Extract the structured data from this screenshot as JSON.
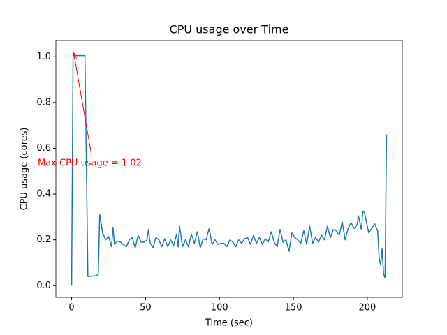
{
  "chart_data": {
    "type": "line",
    "title": "CPU usage over Time",
    "x_label": "Time (sec)",
    "y_label": "CPU usage (cores)",
    "x": [
      0,
      1,
      2,
      3,
      4,
      5,
      6,
      7,
      8,
      9,
      11,
      12,
      14,
      16,
      17,
      18,
      19,
      21,
      23,
      25,
      27,
      28,
      29,
      31,
      33,
      35,
      37,
      39,
      41,
      43,
      45,
      47,
      49,
      51,
      52,
      53,
      55,
      57,
      59,
      61,
      63,
      65,
      67,
      69,
      71,
      72,
      73,
      75,
      77,
      79,
      81,
      83,
      85,
      87,
      89,
      91,
      93,
      95,
      97,
      99,
      101,
      103,
      105,
      107,
      109,
      111,
      113,
      115,
      117,
      119,
      121,
      123,
      125,
      127,
      129,
      131,
      133,
      135,
      137,
      139,
      141,
      143,
      145,
      147,
      149,
      151,
      153,
      155,
      157,
      159,
      161,
      163,
      165,
      167,
      169,
      171,
      173,
      175,
      177,
      179,
      181,
      183,
      185,
      187,
      189,
      191,
      193,
      194,
      196,
      197,
      198,
      200,
      201,
      203,
      205,
      207,
      208,
      209,
      210,
      211,
      212,
      213
    ],
    "series": [
      {
        "name": "CPU usage",
        "color": "#1f77b4",
        "values": [
          0,
          1.02,
          1.01,
          1.005,
          1.005,
          1.005,
          1.005,
          1.005,
          1.005,
          1.005,
          0.04,
          0.04,
          0.042,
          0.043,
          0.045,
          0.05,
          0.31,
          0.23,
          0.2,
          0.215,
          0.17,
          0.255,
          0.18,
          0.195,
          0.19,
          0.18,
          0.17,
          0.2,
          0.21,
          0.165,
          0.22,
          0.19,
          0.19,
          0.2,
          0.245,
          0.19,
          0.165,
          0.21,
          0.2,
          0.17,
          0.205,
          0.17,
          0.2,
          0.175,
          0.225,
          0.17,
          0.26,
          0.17,
          0.2,
          0.17,
          0.225,
          0.185,
          0.235,
          0.165,
          0.205,
          0.2,
          0.25,
          0.18,
          0.2,
          0.18,
          0.185,
          0.185,
          0.17,
          0.2,
          0.19,
          0.17,
          0.2,
          0.185,
          0.205,
          0.21,
          0.18,
          0.22,
          0.185,
          0.21,
          0.18,
          0.205,
          0.19,
          0.235,
          0.19,
          0.17,
          0.245,
          0.19,
          0.2,
          0.15,
          0.23,
          0.21,
          0.2,
          0.185,
          0.24,
          0.18,
          0.26,
          0.185,
          0.21,
          0.19,
          0.22,
          0.2,
          0.26,
          0.21,
          0.245,
          0.24,
          0.22,
          0.28,
          0.2,
          0.25,
          0.275,
          0.25,
          0.265,
          0.305,
          0.245,
          0.325,
          0.32,
          0.26,
          0.23,
          0.25,
          0.27,
          0.24,
          0.12,
          0.09,
          0.16,
          0.05,
          0.035,
          0.66
        ]
      }
    ],
    "xlim": [
      -10.65,
      223.65
    ],
    "xticks": [
      0,
      50,
      100,
      150,
      200
    ],
    "ylim": [
      -0.051,
      1.071
    ],
    "yticks": [
      {
        "value": 0,
        "label": "0.0"
      },
      {
        "value": 0.2,
        "label": "0.2"
      },
      {
        "value": 0.4,
        "label": "0.4"
      },
      {
        "value": 0.6,
        "label": "0.6"
      },
      {
        "value": 0.8,
        "label": "0.8"
      },
      {
        "value": 1,
        "label": "1.0"
      }
    ],
    "annotation": {
      "text": "Max CPU usage = 1.02",
      "x": 1,
      "y": 1.02,
      "color": "#ff0000"
    }
  }
}
